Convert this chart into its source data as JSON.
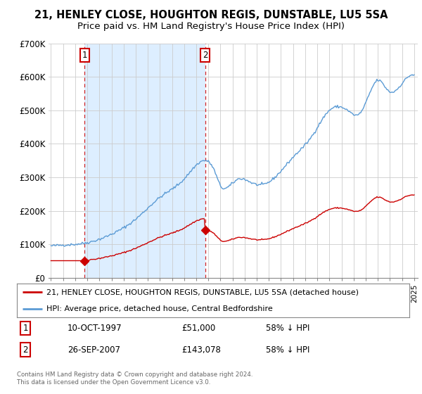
{
  "title": "21, HENLEY CLOSE, HOUGHTON REGIS, DUNSTABLE, LU5 5SA",
  "subtitle": "Price paid vs. HM Land Registry's House Price Index (HPI)",
  "title_fontsize": 10.5,
  "subtitle_fontsize": 9.5,
  "sale1_date": 1997.78,
  "sale1_price": 51000,
  "sale1_label": "1",
  "sale2_date": 2007.73,
  "sale2_price": 143078,
  "sale2_label": "2",
  "hpi_color": "#5b9bd5",
  "price_color": "#cc0000",
  "shade_color": "#ddeeff",
  "background_color": "#ffffff",
  "grid_color": "#cccccc",
  "ylim": [
    0,
    700000
  ],
  "xlim": [
    1994.8,
    2025.3
  ],
  "yticks": [
    0,
    100000,
    200000,
    300000,
    400000,
    500000,
    600000,
    700000
  ],
  "ytick_labels": [
    "£0",
    "£100K",
    "£200K",
    "£300K",
    "£400K",
    "£500K",
    "£600K",
    "£700K"
  ],
  "legend_label_price": "21, HENLEY CLOSE, HOUGHTON REGIS, DUNSTABLE, LU5 5SA (detached house)",
  "legend_label_hpi": "HPI: Average price, detached house, Central Bedfordshire",
  "footer_text": "Contains HM Land Registry data © Crown copyright and database right 2024.\nThis data is licensed under the Open Government Licence v3.0.",
  "annotation1_date": "10-OCT-1997",
  "annotation1_price": "£51,000",
  "annotation1_pct": "58% ↓ HPI",
  "annotation2_date": "26-SEP-2007",
  "annotation2_price": "£143,078",
  "annotation2_pct": "58% ↓ HPI"
}
